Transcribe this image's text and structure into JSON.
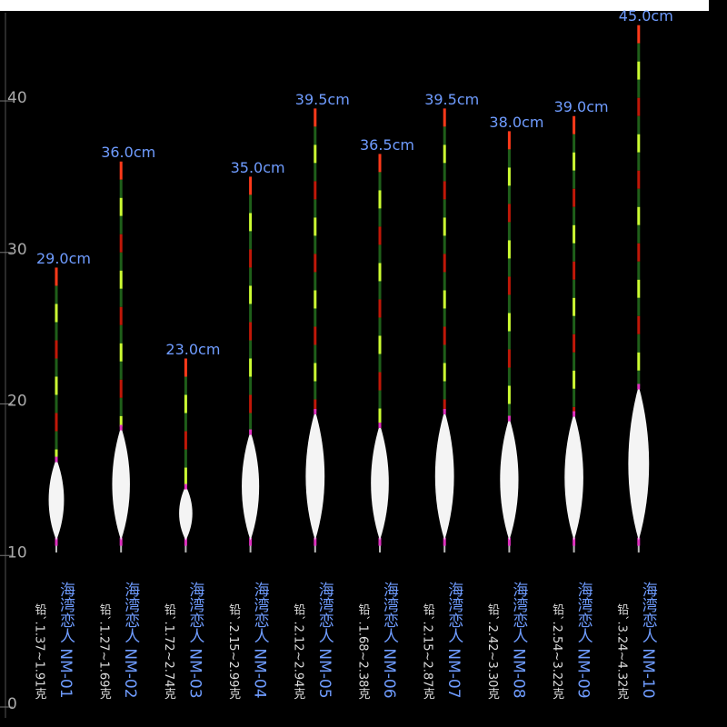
{
  "chart_data": {
    "type": "float",
    "categories": [
      "海湾恋人 NM-01",
      "海湾恋人 NM-02",
      "海湾恋人 NM-03",
      "海湾恋人 NM-04",
      "海湾恋人 NM-05",
      "海湾恋人 NM-06",
      "海湾恋人 NM-07",
      "海湾恋人 NM-08",
      "海湾恋人 NM-09",
      "海湾恋人 NM-10"
    ],
    "values": [
      29.0,
      36.0,
      23.0,
      35.0,
      39.5,
      36.5,
      39.5,
      38.0,
      39.0,
      45.0
    ],
    "value_labels": [
      "29.0cm",
      "36.0cm",
      "23.0cm",
      "35.0cm",
      "39.5cm",
      "36.5cm",
      "39.5cm",
      "38.0cm",
      "39.0cm",
      "45.0cm"
    ],
    "lead_labels": [
      "铅`.1.37~1.91克",
      "铅`.1.27~1.69克",
      "铅`.1.72~2.74克",
      "铅`.2.15~2.99克",
      "铅`.2.12~2.94克",
      "铅`.1.68~2.38克",
      "铅`.2.15~2.87克",
      "铅`.2.42~3.30克",
      "铅`.2.54~3.22克",
      "铅`.3.24~4.32克"
    ],
    "ylim": [
      0,
      46
    ],
    "yticks": [
      0,
      10,
      20,
      30,
      40
    ],
    "label_color": "#6f9cff"
  }
}
